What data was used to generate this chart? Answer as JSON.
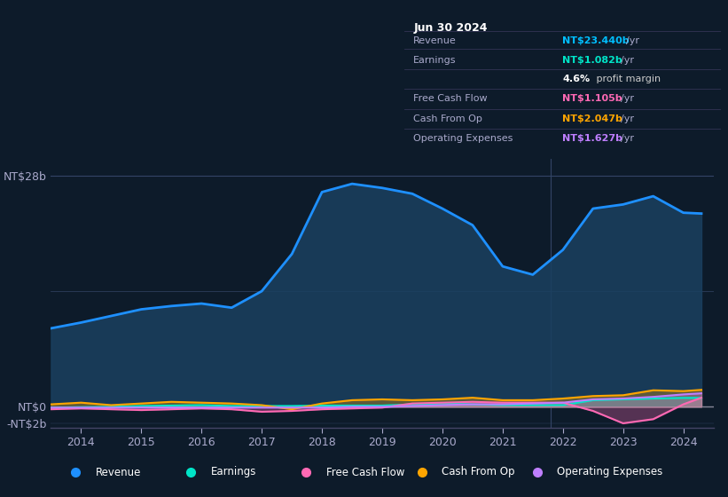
{
  "background_color": "#0d1b2a",
  "plot_bg_color": "#0d1b2a",
  "title_box": {
    "date": "Jun 30 2024",
    "rows": [
      {
        "label": "Revenue",
        "value": "NT$23.440b",
        "unit": "/yr",
        "value_color": "#00bfff"
      },
      {
        "label": "Earnings",
        "value": "NT$1.082b",
        "unit": "/yr",
        "value_color": "#00e5c8"
      },
      {
        "label": "",
        "value": "4.6%",
        "unit": " profit margin",
        "value_color": "#ffffff"
      },
      {
        "label": "Free Cash Flow",
        "value": "NT$1.105b",
        "unit": "/yr",
        "value_color": "#ff69b4"
      },
      {
        "label": "Cash From Op",
        "value": "NT$2.047b",
        "unit": "/yr",
        "value_color": "#ffa500"
      },
      {
        "label": "Operating Expenses",
        "value": "NT$1.627b",
        "unit": "/yr",
        "value_color": "#bf7fff"
      }
    ]
  },
  "ylabel_top": "NT$28b",
  "ylabel_zero": "NT$0",
  "ylabel_neg": "-NT$2b",
  "ylim": [
    -2.5,
    30
  ],
  "years": [
    2013.5,
    2014,
    2014.5,
    2015,
    2015.5,
    2016,
    2016.5,
    2017,
    2017.5,
    2018,
    2018.5,
    2019,
    2019.5,
    2020,
    2020.5,
    2021,
    2021.5,
    2022,
    2022.5,
    2023,
    2023.5,
    2024,
    2024.3
  ],
  "revenue": [
    9.5,
    10.2,
    11.0,
    11.8,
    12.2,
    12.5,
    12.0,
    14.0,
    18.5,
    26.0,
    27.0,
    26.5,
    25.8,
    24.0,
    22.0,
    17.0,
    16.0,
    19.0,
    24.0,
    24.5,
    25.5,
    23.5,
    23.4
  ],
  "earnings": [
    -0.1,
    -0.05,
    0.0,
    0.1,
    0.15,
    0.2,
    0.1,
    0.1,
    0.1,
    0.15,
    0.15,
    0.15,
    0.3,
    0.4,
    0.3,
    0.2,
    0.2,
    0.2,
    0.8,
    0.9,
    1.0,
    1.08,
    1.08
  ],
  "free_cash_flow": [
    -0.3,
    -0.2,
    -0.3,
    -0.4,
    -0.3,
    -0.2,
    -0.3,
    -0.6,
    -0.5,
    -0.3,
    -0.2,
    -0.1,
    0.4,
    0.5,
    0.6,
    0.5,
    0.5,
    0.5,
    -0.5,
    -2.0,
    -1.5,
    0.3,
    1.1
  ],
  "cash_from_op": [
    0.3,
    0.5,
    0.2,
    0.4,
    0.6,
    0.5,
    0.4,
    0.2,
    -0.3,
    0.4,
    0.8,
    0.9,
    0.8,
    0.9,
    1.1,
    0.8,
    0.8,
    1.0,
    1.3,
    1.4,
    2.0,
    1.9,
    2.05
  ],
  "op_expenses": [
    -0.1,
    -0.1,
    -0.1,
    -0.1,
    -0.1,
    -0.1,
    -0.1,
    -0.1,
    -0.1,
    -0.1,
    0.0,
    0.0,
    0.1,
    0.2,
    0.3,
    0.3,
    0.4,
    0.5,
    0.9,
    1.0,
    1.2,
    1.5,
    1.63
  ],
  "revenue_color": "#1e90ff",
  "earnings_color": "#00e5c8",
  "free_cash_flow_color": "#ff69b4",
  "cash_from_op_color": "#ffa500",
  "op_expenses_color": "#bf7fff",
  "legend_items": [
    {
      "label": "Revenue",
      "color": "#1e90ff"
    },
    {
      "label": "Earnings",
      "color": "#00e5c8"
    },
    {
      "label": "Free Cash Flow",
      "color": "#ff69b4"
    },
    {
      "label": "Cash From Op",
      "color": "#ffa500"
    },
    {
      "label": "Operating Expenses",
      "color": "#bf7fff"
    }
  ]
}
